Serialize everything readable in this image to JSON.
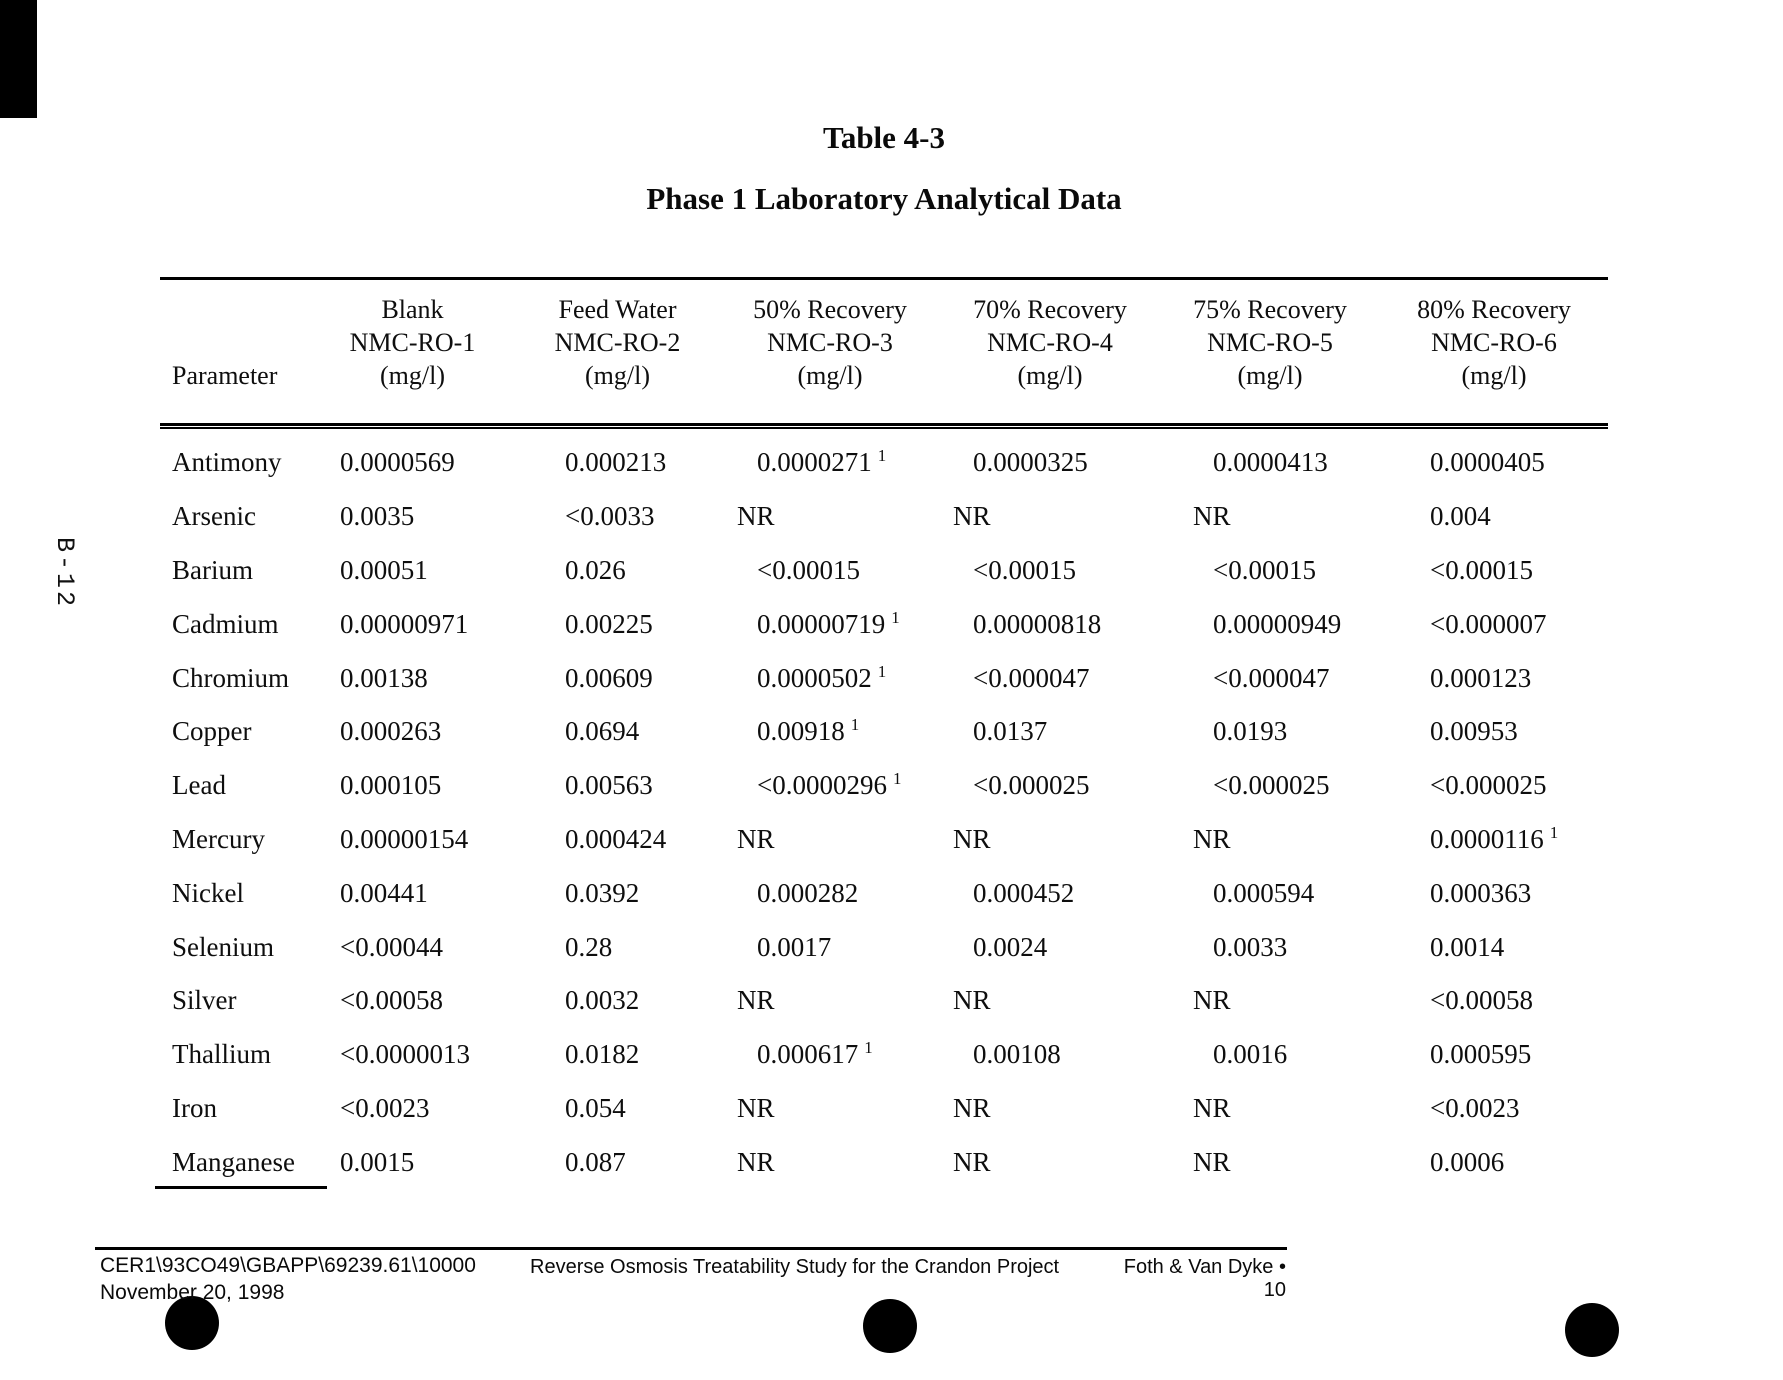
{
  "page": {
    "side_label": "B-12",
    "title": "Table 4-3",
    "subtitle": "Phase 1 Laboratory Analytical Data"
  },
  "table": {
    "param_header": "Parameter",
    "footnote_marker": "1",
    "columns": [
      {
        "line1": "Blank",
        "line2": "NMC-RO-1",
        "line3": "(mg/l)"
      },
      {
        "line1": "Feed Water",
        "line2": "NMC-RO-2",
        "line3": "(mg/l)"
      },
      {
        "line1": "50% Recovery",
        "line2": "NMC-RO-3",
        "line3": "(mg/l)"
      },
      {
        "line1": "70% Recovery",
        "line2": "NMC-RO-4",
        "line3": "(mg/l)"
      },
      {
        "line1": "75% Recovery",
        "line2": "NMC-RO-5",
        "line3": "(mg/l)"
      },
      {
        "line1": "80% Recovery",
        "line2": "NMC-RO-6",
        "line3": "(mg/l)"
      }
    ],
    "rows": [
      {
        "param": "Antimony",
        "values": [
          "0.0000569",
          "0.000213",
          {
            "v": "0.0000271",
            "sup": true
          },
          "0.0000325",
          "0.0000413",
          "0.0000405"
        ]
      },
      {
        "param": "Arsenic",
        "values": [
          "0.0035",
          "<0.0033",
          "NR",
          "NR",
          "NR",
          "0.004"
        ]
      },
      {
        "param": "Barium",
        "values": [
          "0.00051",
          "0.026",
          "<0.00015",
          "<0.00015",
          "<0.00015",
          "<0.00015"
        ]
      },
      {
        "param": "Cadmium",
        "values": [
          "0.00000971",
          "0.00225",
          {
            "v": "0.00000719",
            "sup": true
          },
          "0.00000818",
          "0.00000949",
          "<0.000007"
        ]
      },
      {
        "param": "Chromium",
        "values": [
          "0.00138",
          "0.00609",
          {
            "v": "0.0000502",
            "sup": true
          },
          "<0.000047",
          "<0.000047",
          "0.000123"
        ]
      },
      {
        "param": "Copper",
        "values": [
          "0.000263",
          "0.0694",
          {
            "v": "0.00918",
            "sup": true
          },
          "0.0137",
          "0.0193",
          "0.00953"
        ]
      },
      {
        "param": "Lead",
        "values": [
          "0.000105",
          "0.00563",
          {
            "v": "<0.0000296",
            "sup": true
          },
          "<0.000025",
          "<0.000025",
          "<0.000025"
        ]
      },
      {
        "param": "Mercury",
        "values": [
          "0.00000154",
          "0.000424",
          "NR",
          "NR",
          "NR",
          {
            "v": "0.0000116",
            "sup": true
          }
        ]
      },
      {
        "param": "Nickel",
        "values": [
          "0.00441",
          "0.0392",
          "0.000282",
          "0.000452",
          "0.000594",
          "0.000363"
        ]
      },
      {
        "param": "Selenium",
        "values": [
          "<0.00044",
          "0.28",
          "0.0017",
          "0.0024",
          "0.0033",
          "0.0014"
        ]
      },
      {
        "param": "Silver",
        "values": [
          "<0.00058",
          "0.0032",
          "NR",
          "NR",
          "NR",
          "<0.00058"
        ]
      },
      {
        "param": "Thallium",
        "values": [
          "<0.0000013",
          "0.0182",
          {
            "v": "0.000617",
            "sup": true
          },
          "0.00108",
          "0.0016",
          "0.000595"
        ]
      },
      {
        "param": "Iron",
        "values": [
          "<0.0023",
          "0.054",
          "NR",
          "NR",
          "NR",
          "<0.0023"
        ]
      },
      {
        "param": "Manganese",
        "values": [
          "0.0015",
          "0.087",
          "NR",
          "NR",
          "NR",
          "0.0006"
        ]
      }
    ]
  },
  "footer": {
    "file_ref": "CER1\\93CO49\\GBAPP\\69239.61\\10000",
    "date": "November 20, 1998",
    "doc_title": "Reverse Osmosis Treatability Study for the Crandon Project",
    "org_page": "Foth & Van Dyke • 10"
  }
}
